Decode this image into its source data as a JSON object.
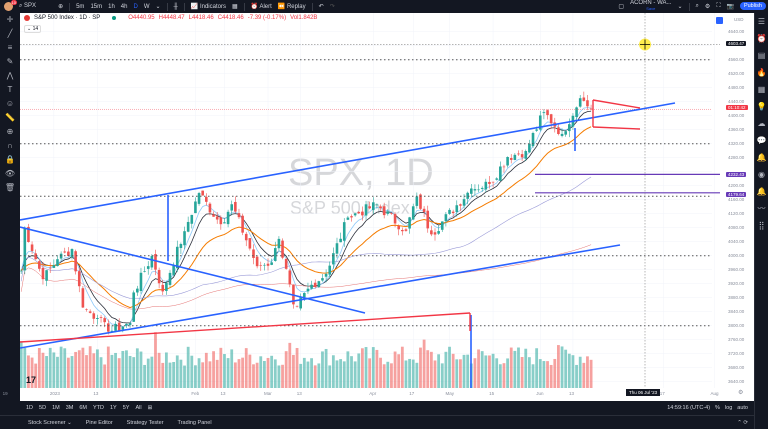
{
  "topbar": {
    "notifications": "10",
    "symbol": "SPX",
    "intervals": [
      "5m",
      "15m",
      "1h",
      "4h",
      "D",
      "W"
    ],
    "active_interval": "D",
    "indicators": "Indicators",
    "alert": "Alert",
    "replay": "Replay",
    "layout_name": "ACORN - WA...",
    "layout_sub": "Save",
    "publish": "Publish"
  },
  "legend": {
    "title": "S&P 500 Index · 1D · SP",
    "open": "O4440.95",
    "high": "H4448.47",
    "low": "L4418.46",
    "close": "C4418.46",
    "change": "-7.39 (-0.17%)",
    "volume": "Vol1.842B",
    "indicator_count": "14"
  },
  "watermark": {
    "symbol": "SPX, 1D",
    "name": "S&P 500 Index"
  },
  "price_axis": {
    "currency": "USD",
    "ticks": [
      4640,
      4560,
      4520,
      4480,
      4440,
      4400,
      4360,
      4320,
      4280,
      4200,
      4160,
      4120,
      4080,
      4040,
      4000,
      3960,
      3920,
      3880,
      3840,
      3800,
      3760,
      3720,
      3680,
      3640
    ],
    "crosshair_label": "4603.47",
    "countdown": "01:10:42",
    "levels": [
      "4232.43",
      "4179.64"
    ]
  },
  "time_axis": {
    "labels": [
      [
        "19",
        -18
      ],
      [
        "2023",
        -5
      ],
      [
        "13",
        7
      ],
      [
        "Feb",
        34
      ],
      [
        "13",
        42
      ],
      [
        "Mar",
        54
      ],
      [
        "13",
        63
      ],
      [
        "Apr",
        83
      ],
      [
        "17",
        94
      ],
      [
        "May",
        104
      ],
      [
        "15",
        116
      ],
      [
        "Jun",
        129
      ],
      [
        "13",
        138
      ],
      [
        "17",
        163
      ],
      [
        "Aug",
        177
      ]
    ],
    "crosshair_date": "Thu 06 Jul '23"
  },
  "range_buttons": [
    "1D",
    "5D",
    "1M",
    "3M",
    "6M",
    "YTD",
    "1Y",
    "5Y",
    "All"
  ],
  "status": {
    "time": "14:59:16 (UTC-4)",
    "pct": "%",
    "log": "log",
    "auto": "auto"
  },
  "bottom_tabs": [
    "Stock Screener",
    "Pine Editor",
    "Strategy Tester",
    "Trading Panel"
  ],
  "colors": {
    "up": "#26a69a",
    "down": "#ef5350",
    "trend": "#2962ff",
    "level": "#673ab7",
    "drawing": "#f23645"
  },
  "chart_data": {
    "type": "candlestick",
    "symbol": "SPX",
    "interval": "1D",
    "ylim": [
      3620,
      4660
    ],
    "close_keypoints": [
      [
        -14,
        3957
      ],
      [
        -13,
        4080
      ],
      [
        -8,
        3933
      ],
      [
        -4,
        3990
      ],
      [
        0,
        4019
      ],
      [
        3,
        3852
      ],
      [
        7,
        3822
      ],
      [
        10,
        3783
      ],
      [
        16,
        3808
      ],
      [
        17,
        3895
      ],
      [
        22,
        3999
      ],
      [
        25,
        3898
      ],
      [
        31,
        4070
      ],
      [
        35,
        4179
      ],
      [
        41,
        4090
      ],
      [
        44,
        4147
      ],
      [
        51,
        3970
      ],
      [
        55,
        3981
      ],
      [
        57,
        4048
      ],
      [
        61,
        3861
      ],
      [
        62,
        3855
      ],
      [
        66,
        3917
      ],
      [
        70,
        3948
      ],
      [
        76,
        4109
      ],
      [
        84,
        4146
      ],
      [
        92,
        4071
      ],
      [
        95,
        4169
      ],
      [
        99,
        4061
      ],
      [
        110,
        4192
      ],
      [
        115,
        4205
      ],
      [
        120,
        4282
      ],
      [
        125,
        4299
      ],
      [
        130,
        4410
      ],
      [
        135,
        4348
      ],
      [
        140,
        4450
      ],
      [
        143,
        4418
      ]
    ]
  }
}
